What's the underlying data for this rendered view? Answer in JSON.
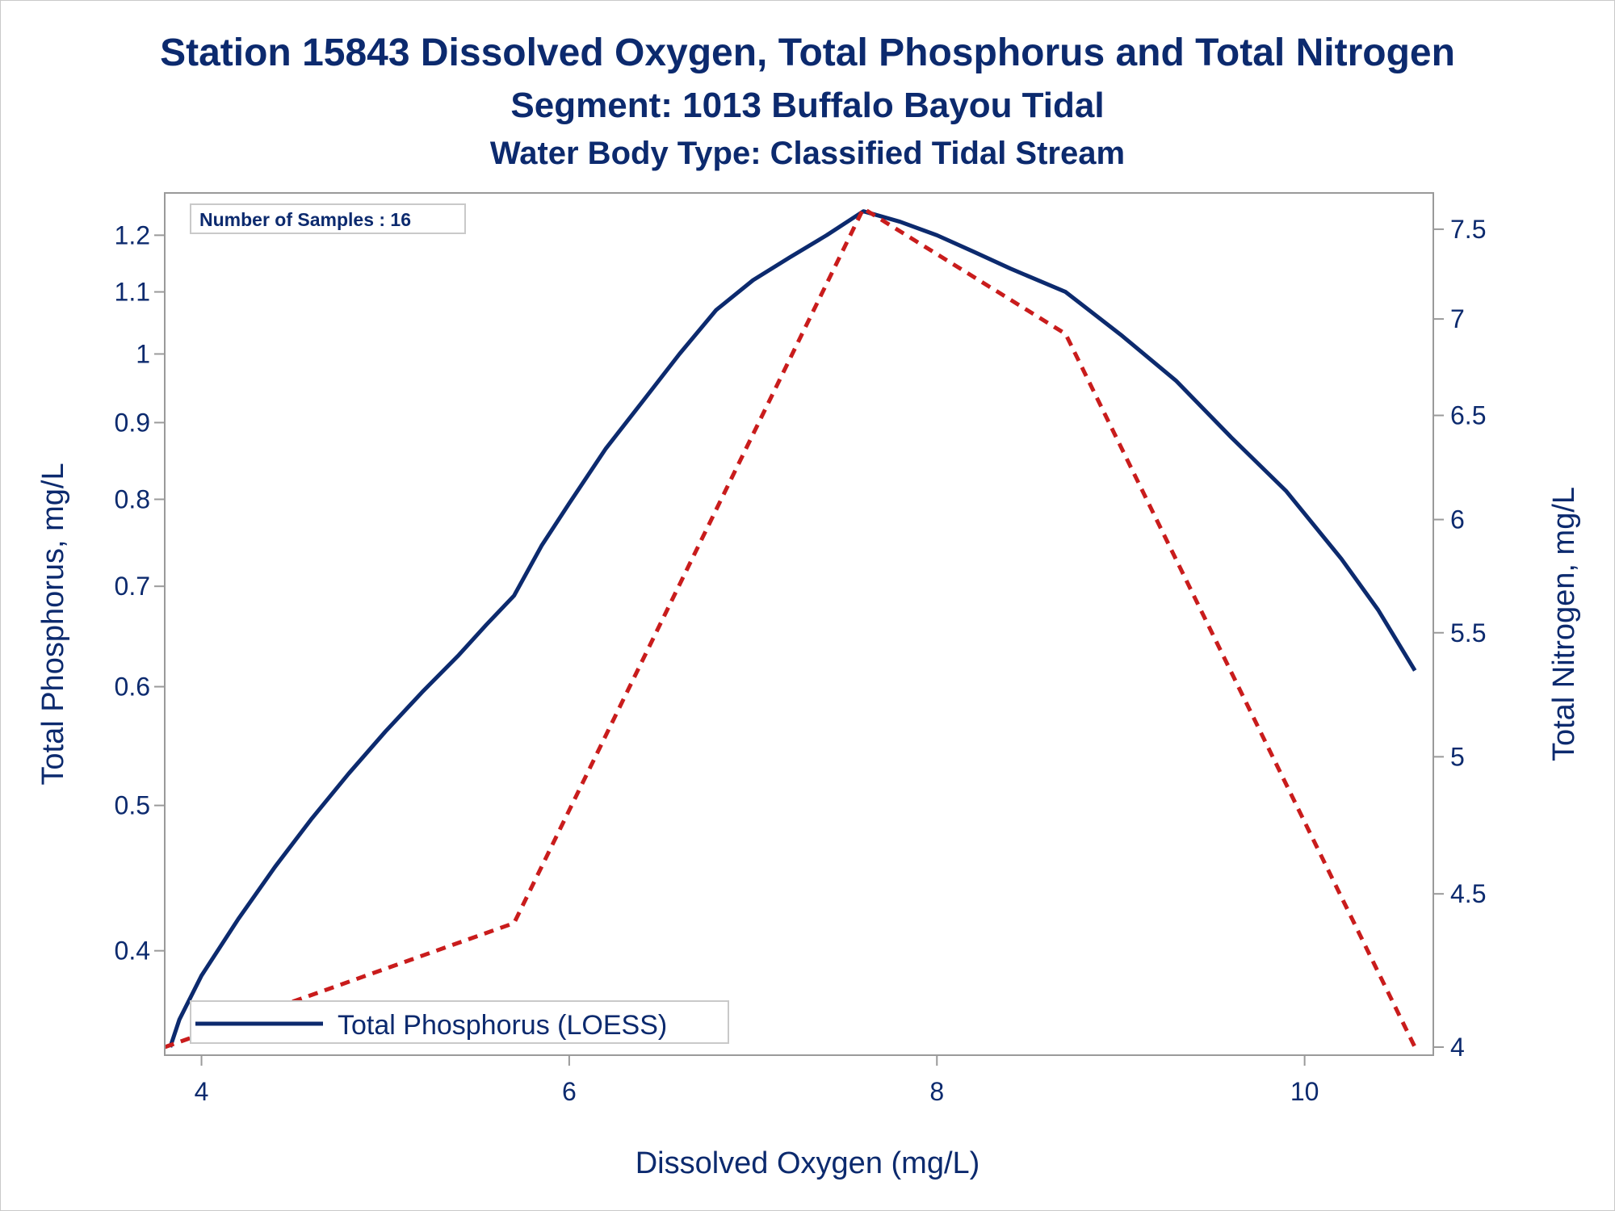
{
  "titles": {
    "line1": "Station 15843  Dissolved Oxygen, Total Phosphorus and Total Nitrogen",
    "line2": "Segment: 1013  Buffalo Bayou Tidal",
    "line3": "Water Body Type: Classified Tidal Stream"
  },
  "chart_data": {
    "type": "line",
    "xlabel": "Dissolved Oxygen (mg/L)",
    "ylabel": "Total Phosphorus, mg/L",
    "y2label": "Total Nitrogen, mg/L",
    "xlim": [
      3.8,
      10.7
    ],
    "ylim": [
      0.345,
      1.26
    ],
    "y_scale": "log",
    "y2lim": [
      4.0,
      7.65
    ],
    "y2_scale": "log",
    "x_ticks": [
      4,
      6,
      8,
      10
    ],
    "x_tick_labels": [
      "4",
      "6",
      "8",
      "10"
    ],
    "y_ticks": [
      0.4,
      0.5,
      0.6,
      0.7,
      0.8,
      0.9,
      1.0,
      1.1,
      1.2
    ],
    "y_tick_labels": [
      "0.4",
      "0.5",
      "0.6",
      "0.7",
      "0.8",
      "0.9",
      "1",
      "1.1",
      "1.2"
    ],
    "y2_ticks": [
      4,
      4.5,
      5,
      5.5,
      6,
      6.5,
      7,
      7.5
    ],
    "y2_tick_labels": [
      "4",
      "4.5",
      "5",
      "5.5",
      "6",
      "6.5",
      "7",
      "7.5"
    ],
    "annotation": "Number of Samples : 16",
    "grid": false,
    "legend_position": "bottom-left",
    "series": [
      {
        "name": "Total Phosphorus (LOESS)",
        "axis": "left",
        "color": "#0c2a6e",
        "style": "solid",
        "x": [
          3.83,
          3.88,
          4.0,
          4.2,
          4.4,
          4.6,
          4.8,
          5.0,
          5.2,
          5.4,
          5.55,
          5.7,
          5.85,
          6.0,
          6.2,
          6.4,
          6.6,
          6.8,
          7.0,
          7.2,
          7.4,
          7.6,
          7.8,
          8.0,
          8.2,
          8.4,
          8.7,
          9.0,
          9.3,
          9.6,
          9.9,
          10.2,
          10.4,
          10.6
        ],
        "y": [
          0.345,
          0.36,
          0.385,
          0.42,
          0.455,
          0.49,
          0.525,
          0.56,
          0.595,
          0.63,
          0.66,
          0.69,
          0.745,
          0.795,
          0.865,
          0.93,
          1.0,
          1.07,
          1.12,
          1.16,
          1.2,
          1.245,
          1.225,
          1.2,
          1.17,
          1.14,
          1.1,
          1.03,
          0.96,
          0.88,
          0.81,
          0.73,
          0.675,
          0.615
        ]
      },
      {
        "name": "",
        "axis": "right",
        "color": "#c91c1c",
        "style": "dashed",
        "x": [
          3.8,
          5.7,
          7.6,
          8.7,
          10.6
        ],
        "y": [
          4.0,
          4.4,
          7.62,
          6.92,
          4.0
        ]
      }
    ]
  }
}
